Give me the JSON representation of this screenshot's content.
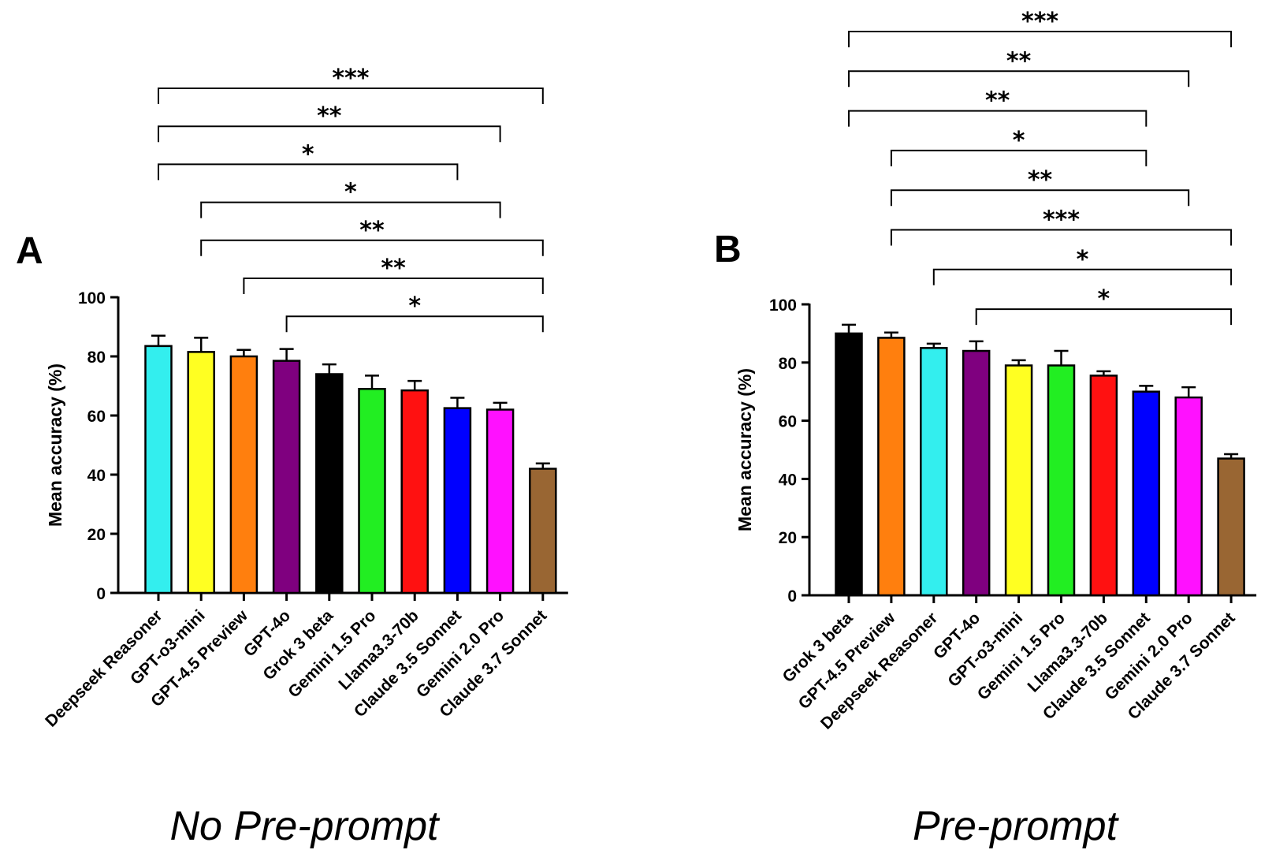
{
  "chart_data": [
    {
      "type": "bar",
      "panel_label": "A",
      "caption": "No Pre-prompt",
      "ylabel": "Mean accuracy (%)",
      "ylim": [
        0,
        100
      ],
      "yticks": [
        0,
        20,
        40,
        60,
        80,
        100
      ],
      "categories": [
        "Deepseek Reasoner",
        "GPT-o3-mini",
        "GPT-4.5 Preview",
        "GPT-4o",
        "Grok 3 beta",
        "Gemini 1.5 Pro",
        "Llama3.3-70b",
        "Claude 3.5 Sonnet",
        "Gemini 2.0 Pro",
        "Claude 3.7 Sonnet"
      ],
      "values": [
        83.5,
        81.5,
        80,
        78.5,
        74,
        69,
        68.5,
        62.5,
        62,
        42
      ],
      "errors": [
        3.5,
        4.8,
        2.2,
        4,
        3.3,
        4.5,
        3.2,
        3.5,
        2.3,
        1.8
      ],
      "colors": [
        "#33eeee",
        "#ffff22",
        "#ff7f0e",
        "#7f007f",
        "#000000",
        "#22ee22",
        "#ff1111",
        "#0000ff",
        "#ff11ff",
        "#996633"
      ],
      "comparisons": [
        {
          "from": 0,
          "to": 9,
          "label": "***"
        },
        {
          "from": 0,
          "to": 8,
          "label": "**"
        },
        {
          "from": 0,
          "to": 7,
          "label": "*"
        },
        {
          "from": 1,
          "to": 8,
          "label": "*"
        },
        {
          "from": 1,
          "to": 9,
          "label": "**"
        },
        {
          "from": 2,
          "to": 9,
          "label": "**"
        },
        {
          "from": 3,
          "to": 9,
          "label": "*"
        }
      ]
    },
    {
      "type": "bar",
      "panel_label": "B",
      "caption": "Pre-prompt",
      "ylabel": "Mean accuracy (%)",
      "ylim": [
        0,
        100
      ],
      "yticks": [
        0,
        20,
        40,
        60,
        80,
        100
      ],
      "categories": [
        "Grok 3 beta",
        "GPT-4.5 Preview",
        "Deepseek Reasoner",
        "GPT-4o",
        "GPT-o3-mini",
        "Gemini 1.5 Pro",
        "Llama3.3-70b",
        "Claude 3.5 Sonnet",
        "Gemini 2.0 Pro",
        "Claude 3.7 Sonnet"
      ],
      "values": [
        90,
        88.5,
        85,
        84,
        79,
        79,
        75.5,
        70,
        68,
        47
      ],
      "errors": [
        3,
        1.8,
        1.5,
        3.3,
        1.8,
        5,
        1.5,
        2,
        3.5,
        1.5
      ],
      "colors": [
        "#000000",
        "#ff7f0e",
        "#33eeee",
        "#7f007f",
        "#ffff22",
        "#22ee22",
        "#ff1111",
        "#0000ff",
        "#ff11ff",
        "#996633"
      ],
      "comparisons": [
        {
          "from": 0,
          "to": 9,
          "label": "***"
        },
        {
          "from": 0,
          "to": 8,
          "label": "**"
        },
        {
          "from": 0,
          "to": 7,
          "label": "**"
        },
        {
          "from": 1,
          "to": 7,
          "label": "*"
        },
        {
          "from": 1,
          "to": 8,
          "label": "**"
        },
        {
          "from": 1,
          "to": 9,
          "label": "***"
        },
        {
          "from": 2,
          "to": 9,
          "label": "*"
        },
        {
          "from": 3,
          "to": 9,
          "label": "*"
        }
      ]
    }
  ]
}
